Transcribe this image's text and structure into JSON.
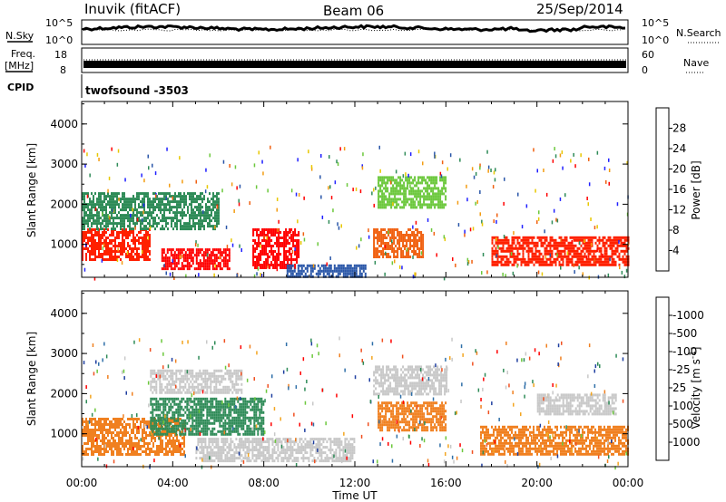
{
  "header": {
    "station": "Inuvik (fitACF)",
    "beam": "Beam 06",
    "date": "25/Sep/2014"
  },
  "panels": {
    "nsky_label": "N.Sky",
    "nsky_ticks": [
      "10^5",
      "10^0"
    ],
    "nsearch_label": "N.Search",
    "freq_label": "Freq.",
    "freq_unit": "[MHz]",
    "freq_ticks": [
      "18",
      "8"
    ],
    "nave_label": "Nave",
    "nave_ticks": [
      "60",
      "0"
    ],
    "cpid_label": "CPID",
    "cpid_value": "twofsound -3503"
  },
  "chart_data": [
    {
      "type": "heatmap",
      "ylabel": "Slant Range [km]",
      "xlabel": "Time UT",
      "x_ticks": [
        "00:00",
        "04:00",
        "08:00",
        "12:00",
        "16:00",
        "20:00",
        "00:00"
      ],
      "y_ticks": [
        1000,
        2000,
        3000,
        4000
      ],
      "ylim": [
        180,
        4560
      ],
      "xlim_hours": [
        0,
        24
      ],
      "colorbar": {
        "label": "Power [dB]",
        "ticks": [
          "4",
          "8",
          "12",
          "16",
          "20",
          "24",
          "28"
        ],
        "colors": [
          "#2020ff",
          "#2a56a8",
          "#2e8b57",
          "#6cc83c",
          "#e8c800",
          "#f39c12",
          "#f06010",
          "#ff0000"
        ]
      },
      "regions": [
        {
          "t0": 0.0,
          "t1": 3.0,
          "r0": 600,
          "r1": 1400,
          "color": "#ff2000"
        },
        {
          "t0": 3.5,
          "t1": 6.5,
          "r0": 400,
          "r1": 900,
          "color": "#ff0000"
        },
        {
          "t0": 7.5,
          "t1": 9.5,
          "r0": 400,
          "r1": 1400,
          "color": "#ff0000"
        },
        {
          "t0": 12.8,
          "t1": 15.0,
          "r0": 700,
          "r1": 1400,
          "color": "#f06010"
        },
        {
          "t0": 0.0,
          "t1": 6.0,
          "r0": 1400,
          "r1": 2300,
          "color": "#2e8b57"
        },
        {
          "t0": 13.0,
          "t1": 16.0,
          "r0": 1900,
          "r1": 2700,
          "color": "#6cc83c"
        },
        {
          "t0": 18.0,
          "t1": 24.0,
          "r0": 500,
          "r1": 1200,
          "color": "#ff2000"
        },
        {
          "t0": 9.0,
          "t1": 12.5,
          "r0": 200,
          "r1": 500,
          "color": "#2a56a8"
        }
      ]
    },
    {
      "type": "heatmap",
      "ylabel": "Slant Range [km]",
      "xlabel": "Time UT",
      "x_ticks": [
        "00:00",
        "04:00",
        "08:00",
        "12:00",
        "16:00",
        "20:00",
        "00:00"
      ],
      "y_ticks": [
        1000,
        2000,
        3000,
        4000
      ],
      "ylim": [
        180,
        4560
      ],
      "xlim_hours": [
        0,
        24
      ],
      "colorbar": {
        "label": "Velocity [m s^-1]",
        "ticks": [
          "1000",
          "500",
          "100",
          "25",
          "-25",
          "-100",
          "-500",
          "-1000"
        ],
        "colors": [
          "#1f3fa0",
          "#2f6fa8",
          "#2e8b57",
          "#6cc83c",
          "#c8c8c8",
          "#f3a520",
          "#f08020",
          "#f05020",
          "#ff0000"
        ]
      },
      "regions": [
        {
          "t0": 0.0,
          "t1": 4.5,
          "r0": 500,
          "r1": 1400,
          "color": "#f08020"
        },
        {
          "t0": 3.0,
          "t1": 8.0,
          "r0": 1000,
          "r1": 1900,
          "color": "#2e8b57"
        },
        {
          "t0": 5.0,
          "t1": 12.0,
          "r0": 300,
          "r1": 900,
          "color": "#c8c8c8"
        },
        {
          "t0": 3.0,
          "t1": 7.0,
          "r0": 2000,
          "r1": 2600,
          "color": "#c8c8c8"
        },
        {
          "t0": 13.0,
          "t1": 16.0,
          "r0": 1100,
          "r1": 1800,
          "color": "#f08020"
        },
        {
          "t0": 12.8,
          "t1": 16.0,
          "r0": 2000,
          "r1": 2700,
          "color": "#c8c8c8"
        },
        {
          "t0": 17.5,
          "t1": 24.0,
          "r0": 500,
          "r1": 1200,
          "color": "#f08020"
        },
        {
          "t0": 20.0,
          "t1": 23.5,
          "r0": 1500,
          "r1": 2000,
          "color": "#c8c8c8"
        }
      ]
    }
  ]
}
